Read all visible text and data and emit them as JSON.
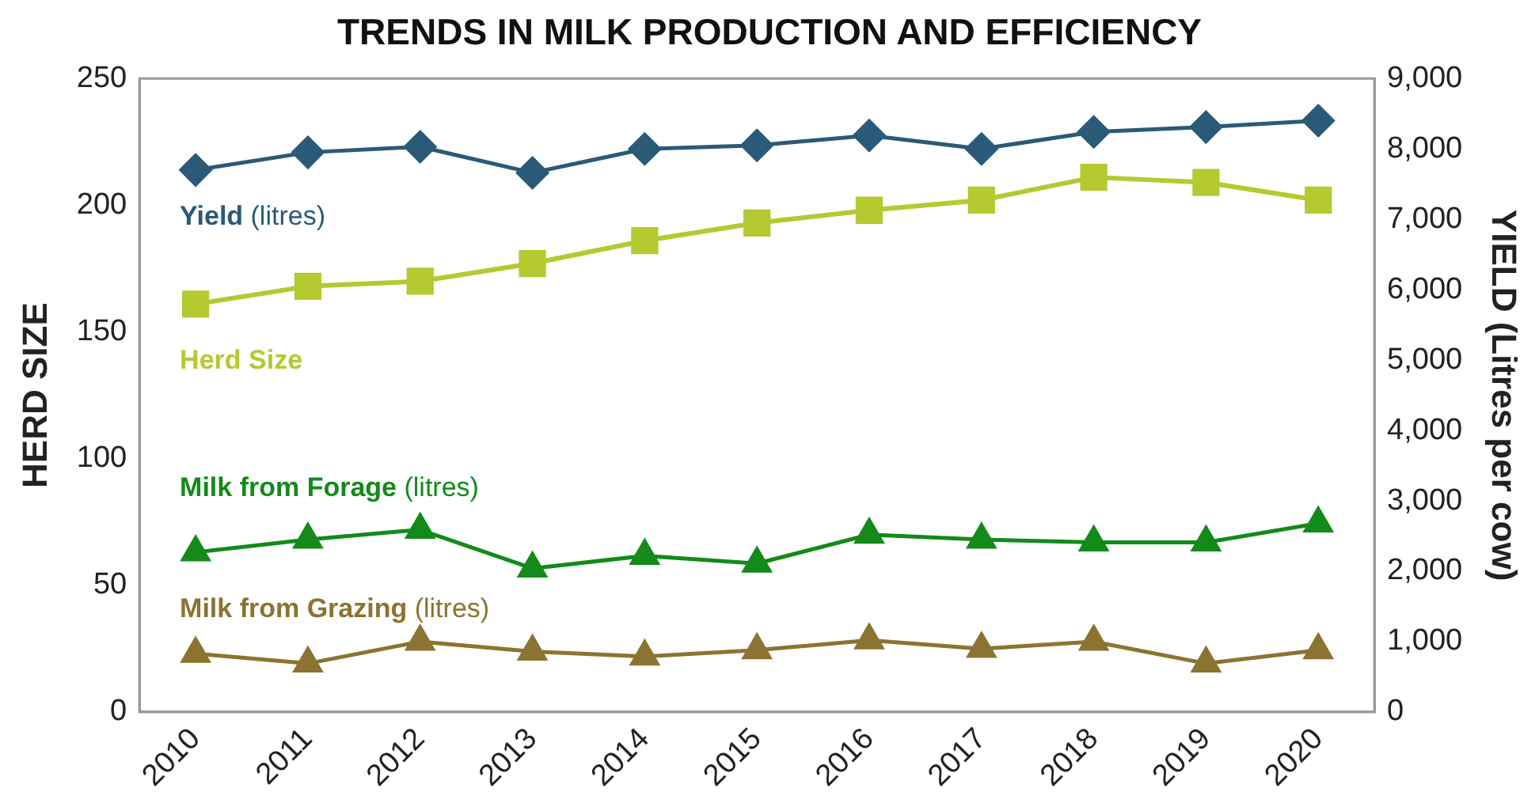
{
  "chart_data": {
    "type": "line",
    "title": "TRENDS IN MILK PRODUCTION AND EFFICIENCY",
    "ylabel": "HERD SIZE",
    "y2label": "YIELD (Litres per cow)",
    "categories": [
      "2010",
      "2011",
      "2012",
      "2013",
      "2014",
      "2015",
      "2016",
      "2017",
      "2018",
      "2019",
      "2020"
    ],
    "series": [
      {
        "name": "Yield (litres)",
        "color": "#2a5a78",
        "axis": "y2",
        "marker": "diamond",
        "values": [
          7700,
          7950,
          8030,
          7660,
          8000,
          8050,
          8190,
          8000,
          8240,
          8310,
          8400
        ]
      },
      {
        "name": "Herd Size",
        "color": "#b5c930",
        "marker": "square",
        "values": [
          161,
          168,
          170,
          177,
          186,
          193,
          198,
          202,
          211,
          209,
          202
        ]
      },
      {
        "name": "Milk from Forage (litres)",
        "color": "#138a1a",
        "axis": "y2",
        "marker": "triangle",
        "values": [
          2270,
          2450,
          2590,
          2040,
          2220,
          2110,
          2520,
          2450,
          2410,
          2410,
          2680
        ]
      },
      {
        "name": "Milk from Grazing (litres)",
        "color": "#8b7331",
        "axis": "y2",
        "marker": "triangle",
        "values": [
          830,
          690,
          1000,
          860,
          790,
          880,
          1020,
          900,
          1000,
          690,
          880
        ]
      }
    ],
    "ylim": [
      0,
      250
    ],
    "yticks": [
      0,
      50,
      100,
      150,
      200,
      250
    ],
    "y2lim": [
      0,
      9000
    ],
    "y2ticks": [
      0,
      {
        "value": 1000,
        "label": "1,000"
      },
      {
        "value": 2000,
        "label": "2,000"
      },
      {
        "value": 3000,
        "label": "3,000"
      },
      {
        "value": 4000,
        "label": "4,000"
      },
      {
        "value": 5000,
        "label": "5,000"
      },
      {
        "value": 6000,
        "label": "6,000"
      },
      {
        "value": 7000,
        "label": "7,000"
      },
      {
        "value": 8000,
        "label": "8,000"
      },
      {
        "value": 9000,
        "label": "9,000"
      }
    ],
    "grid": false,
    "legend": false
  }
}
